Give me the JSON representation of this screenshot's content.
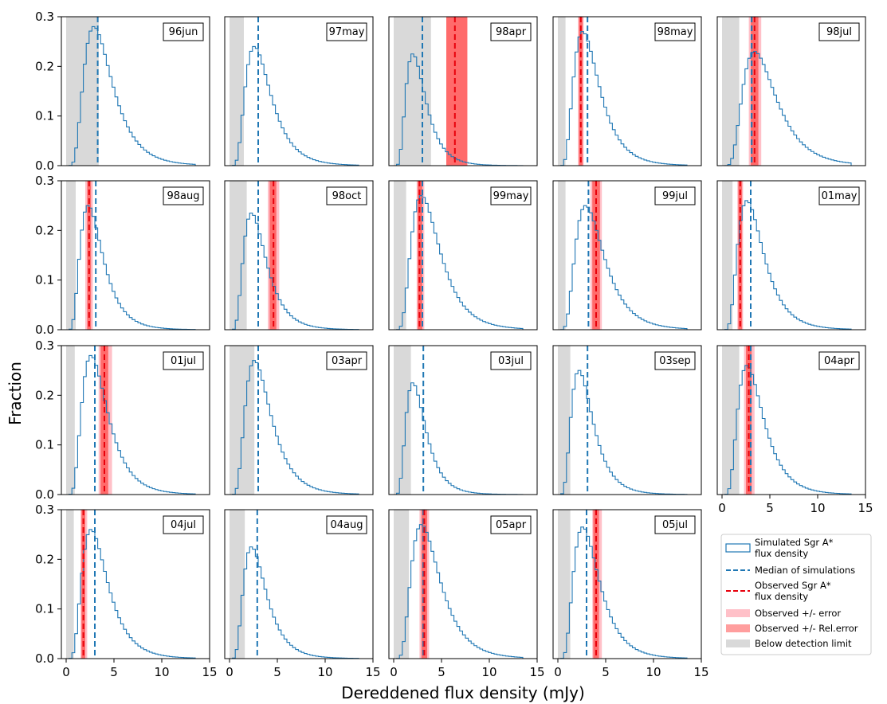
{
  "chart_data": {
    "type": "histogram-grid",
    "xlabel": "Dereddened flux density (mJy)",
    "ylabel": "Fraction",
    "xlim": [
      -0.5,
      15
    ],
    "ylim": [
      0,
      0.3
    ],
    "xticks": [
      "0",
      "5",
      "10",
      "15"
    ],
    "yticks": [
      "0.0",
      "0.1",
      "0.2",
      "0.3"
    ],
    "colors": {
      "simulated": "#1f77b4",
      "median": "#1f77b4",
      "observed": "#e8000b",
      "error_band": "#ffc0c8",
      "relerror_band": "#ff6b6b",
      "detection_limit": "#d9d9d9"
    },
    "legend": {
      "position": "bottom-right",
      "entries": [
        "Simulated Sgr A*\nflux density",
        "Median of simulations",
        "Observed Sgr A*\nflux density",
        "Observed +/- error",
        "Observed +/- Rel.error",
        "Below detection limit"
      ]
    },
    "panels": [
      {
        "label": "96jun",
        "median": 3.3,
        "observed": null,
        "error_band": null,
        "relerror_band": null,
        "detection_limit": [
          0,
          3.4
        ],
        "peak_x": 2.9,
        "peak_y": 0.28
      },
      {
        "label": "97may",
        "median": 3.0,
        "observed": null,
        "error_band": null,
        "relerror_band": null,
        "detection_limit": [
          0,
          1.5
        ],
        "peak_x": 2.6,
        "peak_y": 0.24
      },
      {
        "label": "98apr",
        "median": 3.0,
        "observed": 6.4,
        "error_band": [
          5.5,
          7.7
        ],
        "relerror_band": [
          5.5,
          7.7
        ],
        "detection_limit": [
          0,
          3.9
        ],
        "peak_x": 2.0,
        "peak_y": 0.225
      },
      {
        "label": "98may",
        "median": 3.1,
        "observed": 2.4,
        "error_band": [
          2.1,
          2.7
        ],
        "relerror_band": [
          2.2,
          2.6
        ],
        "detection_limit": [
          0,
          0.8
        ],
        "peak_x": 2.6,
        "peak_y": 0.27
      },
      {
        "label": "98jul",
        "median": 3.1,
        "observed": 3.4,
        "error_band": [
          2.8,
          4.1
        ],
        "relerror_band": [
          3.0,
          3.8
        ],
        "detection_limit": [
          0,
          1.8
        ],
        "peak_x": 3.4,
        "peak_y": 0.23
      },
      {
        "label": "98aug",
        "median": 3.1,
        "observed": 2.4,
        "error_band": [
          2.0,
          2.8
        ],
        "relerror_band": [
          2.2,
          2.6
        ],
        "detection_limit": [
          0,
          1.0
        ],
        "peak_x": 2.3,
        "peak_y": 0.25
      },
      {
        "label": "98oct",
        "median": 3.0,
        "observed": 4.6,
        "error_band": [
          4.0,
          5.2
        ],
        "relerror_band": [
          4.2,
          4.9
        ],
        "detection_limit": [
          0,
          1.8
        ],
        "peak_x": 2.3,
        "peak_y": 0.235
      },
      {
        "label": "99may",
        "median": 3.0,
        "observed": 2.7,
        "error_band": [
          2.4,
          3.2
        ],
        "relerror_band": [
          2.5,
          3.0
        ],
        "detection_limit": [
          0,
          1.3
        ],
        "peak_x": 2.9,
        "peak_y": 0.27
      },
      {
        "label": "99jul",
        "median": 3.2,
        "observed": 4.0,
        "error_band": [
          3.4,
          4.6
        ],
        "relerror_band": [
          3.6,
          4.4
        ],
        "detection_limit": [
          0,
          0.8
        ],
        "peak_x": 2.9,
        "peak_y": 0.25
      },
      {
        "label": "01may",
        "median": 3.0,
        "observed": 1.9,
        "error_band": [
          1.6,
          2.2
        ],
        "relerror_band": [
          1.7,
          2.1
        ],
        "detection_limit": [
          0,
          1.1
        ],
        "peak_x": 2.6,
        "peak_y": 0.26
      },
      {
        "label": "01jul",
        "median": 3.0,
        "observed": 4.0,
        "error_band": [
          3.4,
          4.8
        ],
        "relerror_band": [
          3.6,
          4.4
        ],
        "detection_limit": [
          0,
          0.9
        ],
        "peak_x": 2.6,
        "peak_y": 0.28
      },
      {
        "label": "03apr",
        "median": 3.0,
        "observed": null,
        "error_band": null,
        "relerror_band": null,
        "detection_limit": [
          0,
          2.6
        ],
        "peak_x": 2.6,
        "peak_y": 0.27
      },
      {
        "label": "03jul",
        "median": 3.1,
        "observed": null,
        "error_band": null,
        "relerror_band": null,
        "detection_limit": [
          0,
          1.8
        ],
        "peak_x": 2.0,
        "peak_y": 0.225
      },
      {
        "label": "03sep",
        "median": 3.1,
        "observed": null,
        "error_band": null,
        "relerror_band": null,
        "detection_limit": [
          0,
          1.3
        ],
        "peak_x": 2.2,
        "peak_y": 0.25
      },
      {
        "label": "04apr",
        "median": 3.0,
        "observed": 2.8,
        "error_band": [
          2.3,
          3.4
        ],
        "relerror_band": [
          2.5,
          3.1
        ],
        "detection_limit": [
          0,
          1.8
        ],
        "peak_x": 2.6,
        "peak_y": 0.26
      },
      {
        "label": "04jul",
        "median": 3.0,
        "observed": 1.8,
        "error_band": [
          1.5,
          2.2
        ],
        "relerror_band": [
          1.6,
          2.0
        ],
        "detection_limit": [
          0,
          0.8
        ],
        "peak_x": 2.6,
        "peak_y": 0.26
      },
      {
        "label": "04aug",
        "median": 2.9,
        "observed": null,
        "error_band": null,
        "relerror_band": null,
        "detection_limit": [
          0,
          1.6
        ],
        "peak_x": 2.3,
        "peak_y": 0.225
      },
      {
        "label": "05apr",
        "median": 3.1,
        "observed": 3.2,
        "error_band": [
          2.7,
          3.7
        ],
        "relerror_band": [
          2.9,
          3.5
        ],
        "detection_limit": [
          0,
          1.6
        ],
        "peak_x": 2.9,
        "peak_y": 0.27
      },
      {
        "label": "05jul",
        "median": 3.0,
        "observed": 4.0,
        "error_band": [
          3.6,
          4.6
        ],
        "relerror_band": [
          3.7,
          4.3
        ],
        "detection_limit": [
          0,
          1.3
        ],
        "peak_x": 2.6,
        "peak_y": 0.265
      }
    ]
  }
}
